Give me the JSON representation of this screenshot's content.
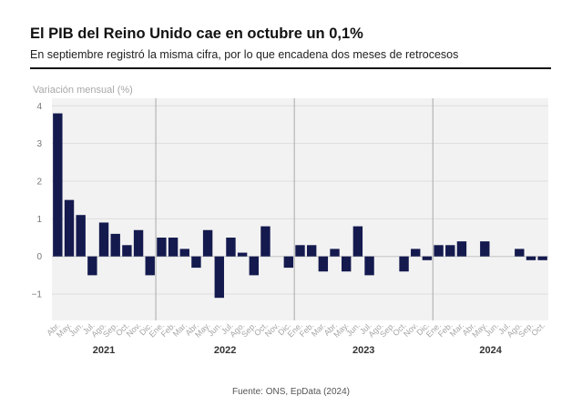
{
  "header": {
    "title": "El PIB del Reino Unido cae en octubre un 0,1%",
    "subtitle": "En septiembre registró la misma cifra, por lo que encadena dos meses de retrocesos"
  },
  "footer": {
    "source": "Fuente: ONS, EpData (2024)"
  },
  "colors": {
    "bar": "#141a4e",
    "plot_bg": "#f2f2f2",
    "grid": "#dddddd",
    "year_divider": "#aaaaaa"
  },
  "chart_data": {
    "type": "bar",
    "title": "El PIB del Reino Unido cae en octubre un 0,1%",
    "ylabel": "Variación mensual (%)",
    "ylim": [
      -1.7,
      4.2
    ],
    "yticks": [
      -1,
      0,
      1,
      2,
      3,
      4
    ],
    "ytick_labels": [
      "−1",
      "0",
      "1",
      "2",
      "3",
      "4"
    ],
    "grid": true,
    "years": [
      {
        "label": "2021",
        "start": 0
      },
      {
        "label": "2022",
        "start": 9
      },
      {
        "label": "2023",
        "start": 21
      },
      {
        "label": "2024",
        "start": 33
      }
    ],
    "categories": [
      "Abr.",
      "May.",
      "Jun.",
      "Jul.",
      "Ago.",
      "Sep.",
      "Oct.",
      "Nov.",
      "Dic.",
      "Ene.",
      "Feb.",
      "Mar.",
      "Abr.",
      "May.",
      "Jun.",
      "Jul.",
      "Ago.",
      "Sep.",
      "Oct.",
      "Nov.",
      "Dic.",
      "Ene.",
      "Feb.",
      "Mar.",
      "Abr.",
      "May.",
      "Jun.",
      "Jul.",
      "Ago.",
      "Sep.",
      "Oct.",
      "Nov.",
      "Dic.",
      "Ene.",
      "Feb.",
      "Mar.",
      "Abr.",
      "May.",
      "Jun.",
      "Jul.",
      "Ago.",
      "Sep.",
      "Oct."
    ],
    "values": [
      3.8,
      1.5,
      1.1,
      -0.5,
      0.9,
      0.6,
      0.3,
      0.7,
      -0.5,
      0.5,
      0.5,
      0.2,
      -0.3,
      0.7,
      -1.1,
      0.5,
      0.1,
      -0.5,
      0.8,
      0.0,
      -0.3,
      0.3,
      0.3,
      -0.4,
      0.2,
      -0.4,
      0.8,
      -0.5,
      0.0,
      0.0,
      -0.4,
      0.2,
      -0.1,
      0.3,
      0.3,
      0.4,
      0.0,
      0.4,
      0.0,
      0.0,
      0.2,
      -0.1,
      -0.1
    ]
  }
}
